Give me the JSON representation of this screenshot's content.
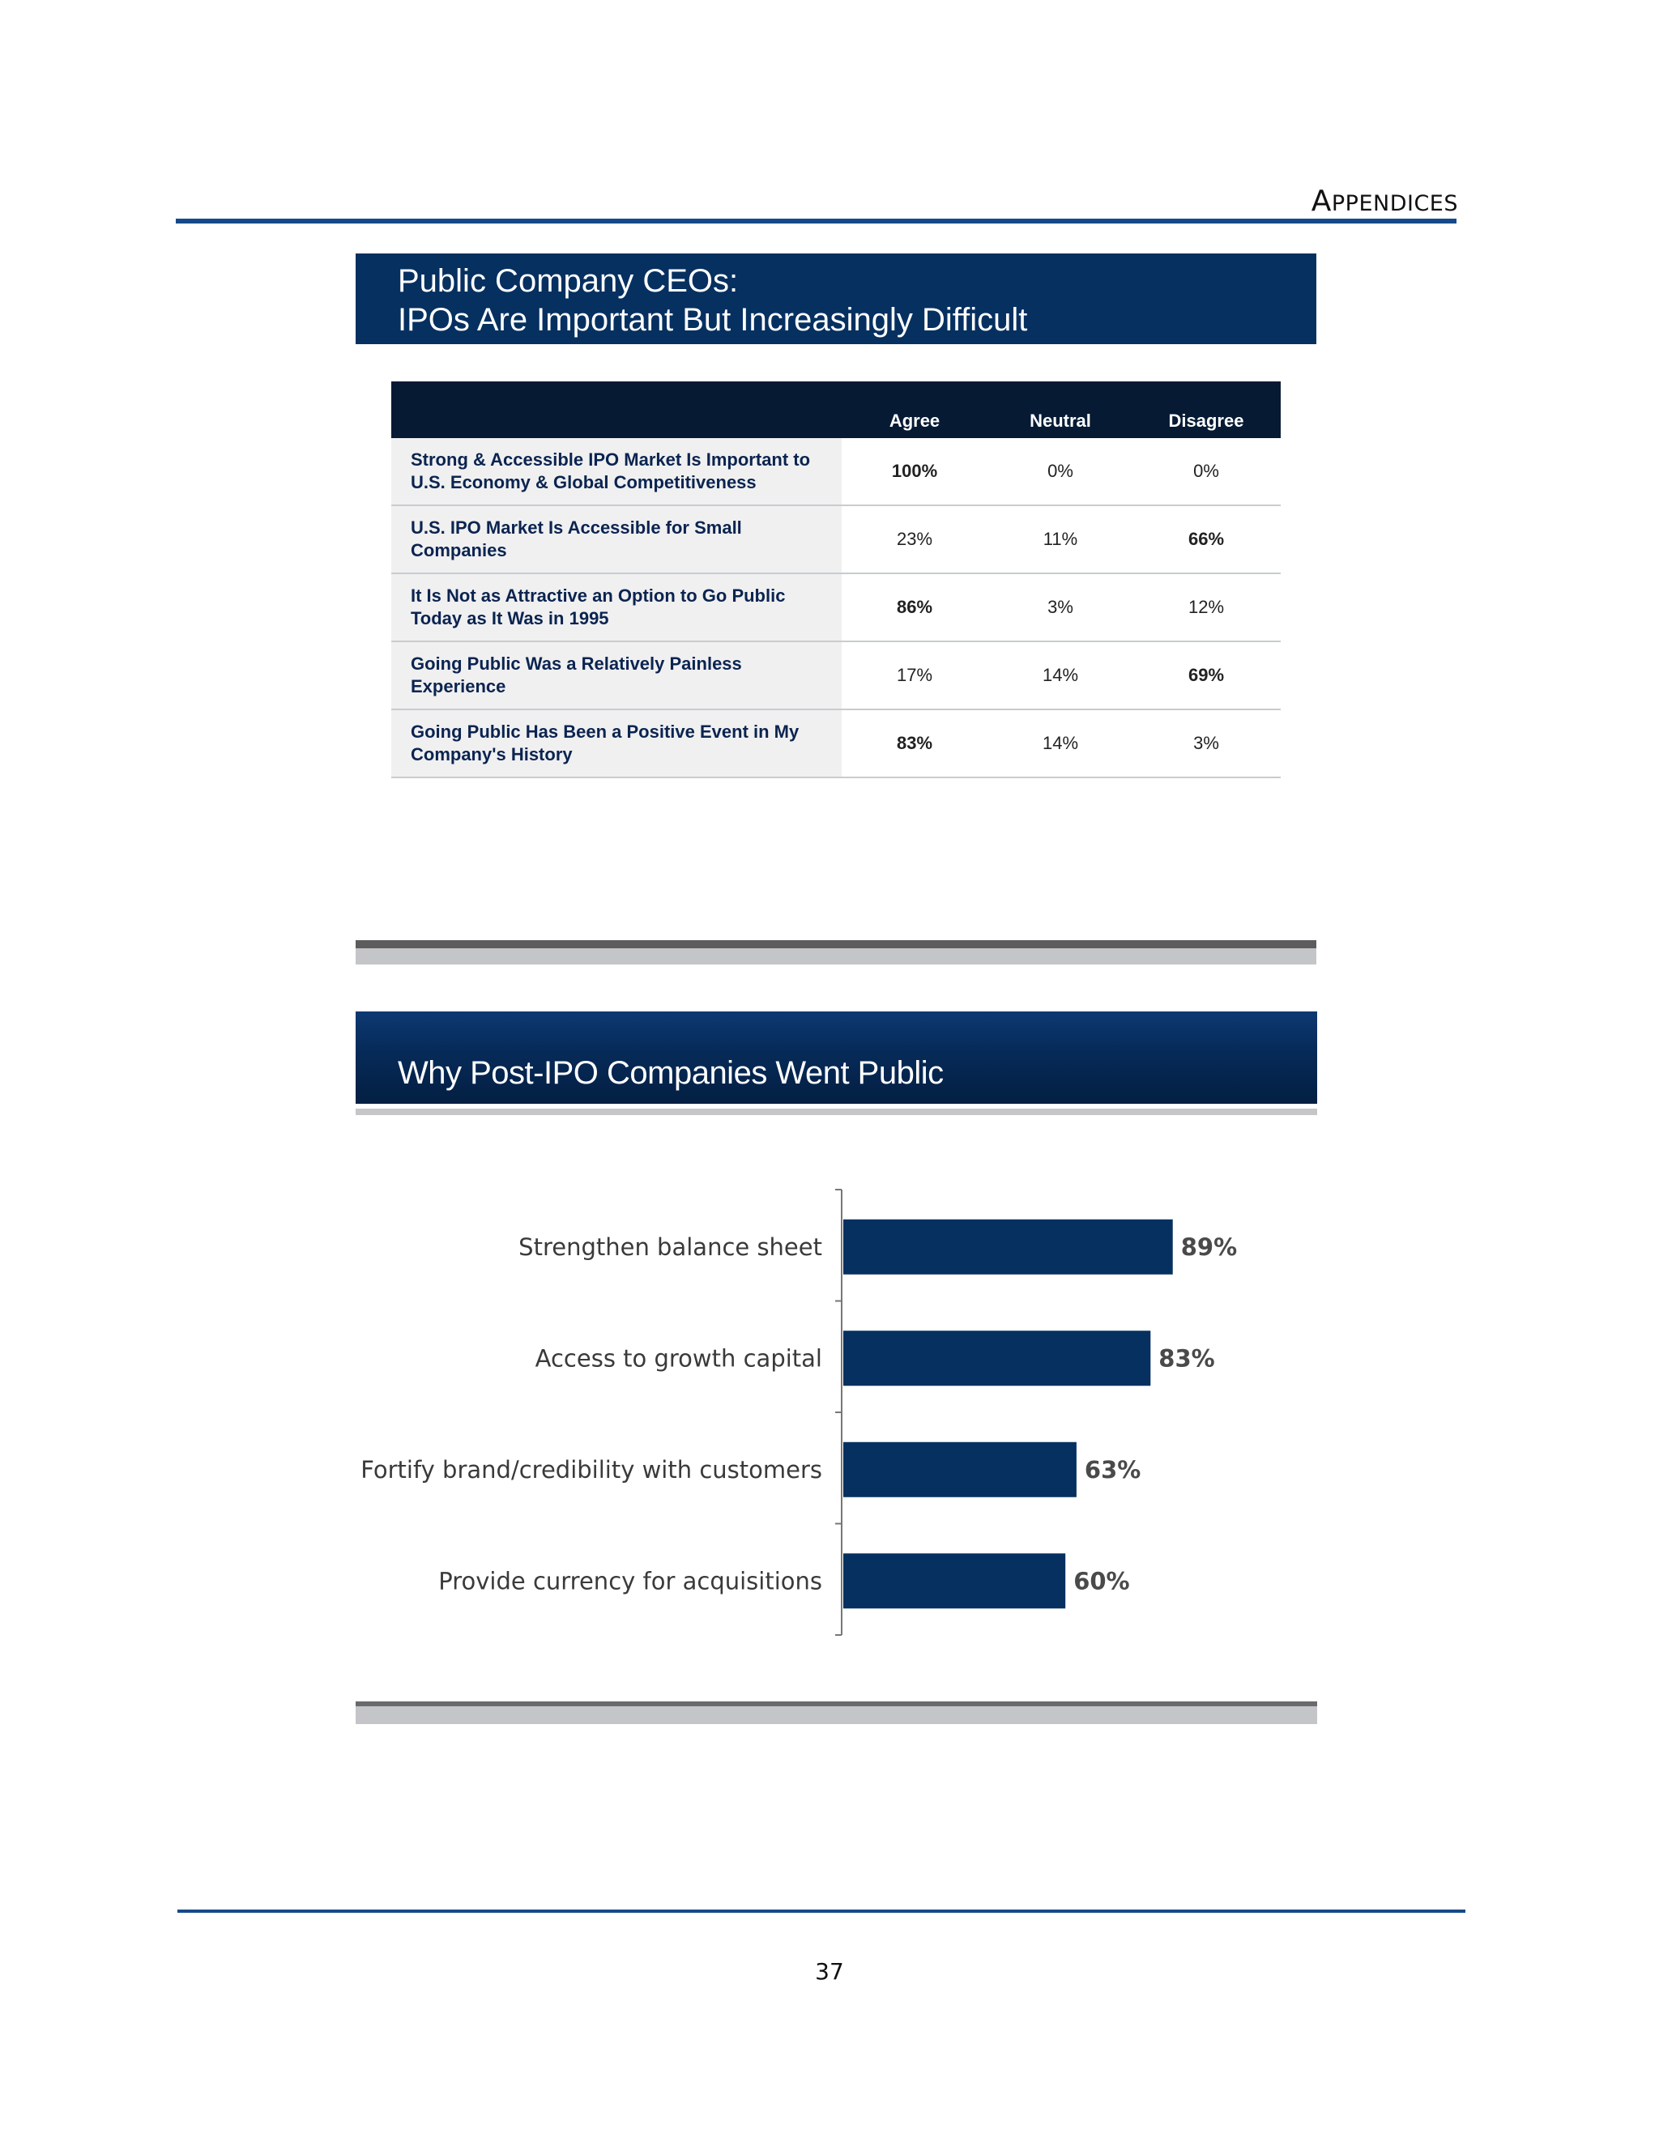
{
  "header": {
    "section_first": "A",
    "section_rest": "PPENDICES"
  },
  "slide1": {
    "title_line1": "Public Company CEOs:",
    "title_line2": "IPOs Are Important But Increasingly Difficult",
    "columns": [
      "Agree",
      "Neutral",
      "Disagree"
    ],
    "rows": [
      {
        "label": "Strong & Accessible IPO Market Is Important to U.S. Economy & Global Competitiveness",
        "values": [
          "100%",
          "0%",
          "0%"
        ],
        "bold_index": 0
      },
      {
        "label": "U.S. IPO Market Is Accessible for Small Companies",
        "values": [
          "23%",
          "11%",
          "66%"
        ],
        "bold_index": 2
      },
      {
        "label": "It Is Not as Attractive an Option to Go Public Today as It Was in 1995",
        "values": [
          "86%",
          "3%",
          "12%"
        ],
        "bold_index": 0
      },
      {
        "label": "Going Public Was a Relatively Painless Experience",
        "values": [
          "17%",
          "14%",
          "69%"
        ],
        "bold_index": 2
      },
      {
        "label": "Going Public Has Been a Positive Event in My Company's History",
        "values": [
          "83%",
          "14%",
          "3%"
        ],
        "bold_index": 0
      }
    ]
  },
  "slide2": {
    "title": "Why Post-IPO Companies Went Public"
  },
  "chart_data": {
    "type": "bar",
    "orientation": "horizontal",
    "categories": [
      "Strengthen balance sheet",
      "Access to growth capital",
      "Fortify brand/credibility with customers",
      "Provide currency for acquisitions"
    ],
    "values": [
      89,
      83,
      63,
      60
    ],
    "value_labels": [
      "89%",
      "83%",
      "63%",
      "60%"
    ],
    "unit": "%",
    "xlim": [
      0,
      100
    ],
    "bar_color": "#063060",
    "grid": false,
    "legend": "none"
  },
  "footer": {
    "page_number": "37"
  },
  "colors": {
    "rule": "#154a8a",
    "title_bg": "#063060",
    "table_head_bg": "#061a34",
    "row_label_text": "#0b2450"
  }
}
